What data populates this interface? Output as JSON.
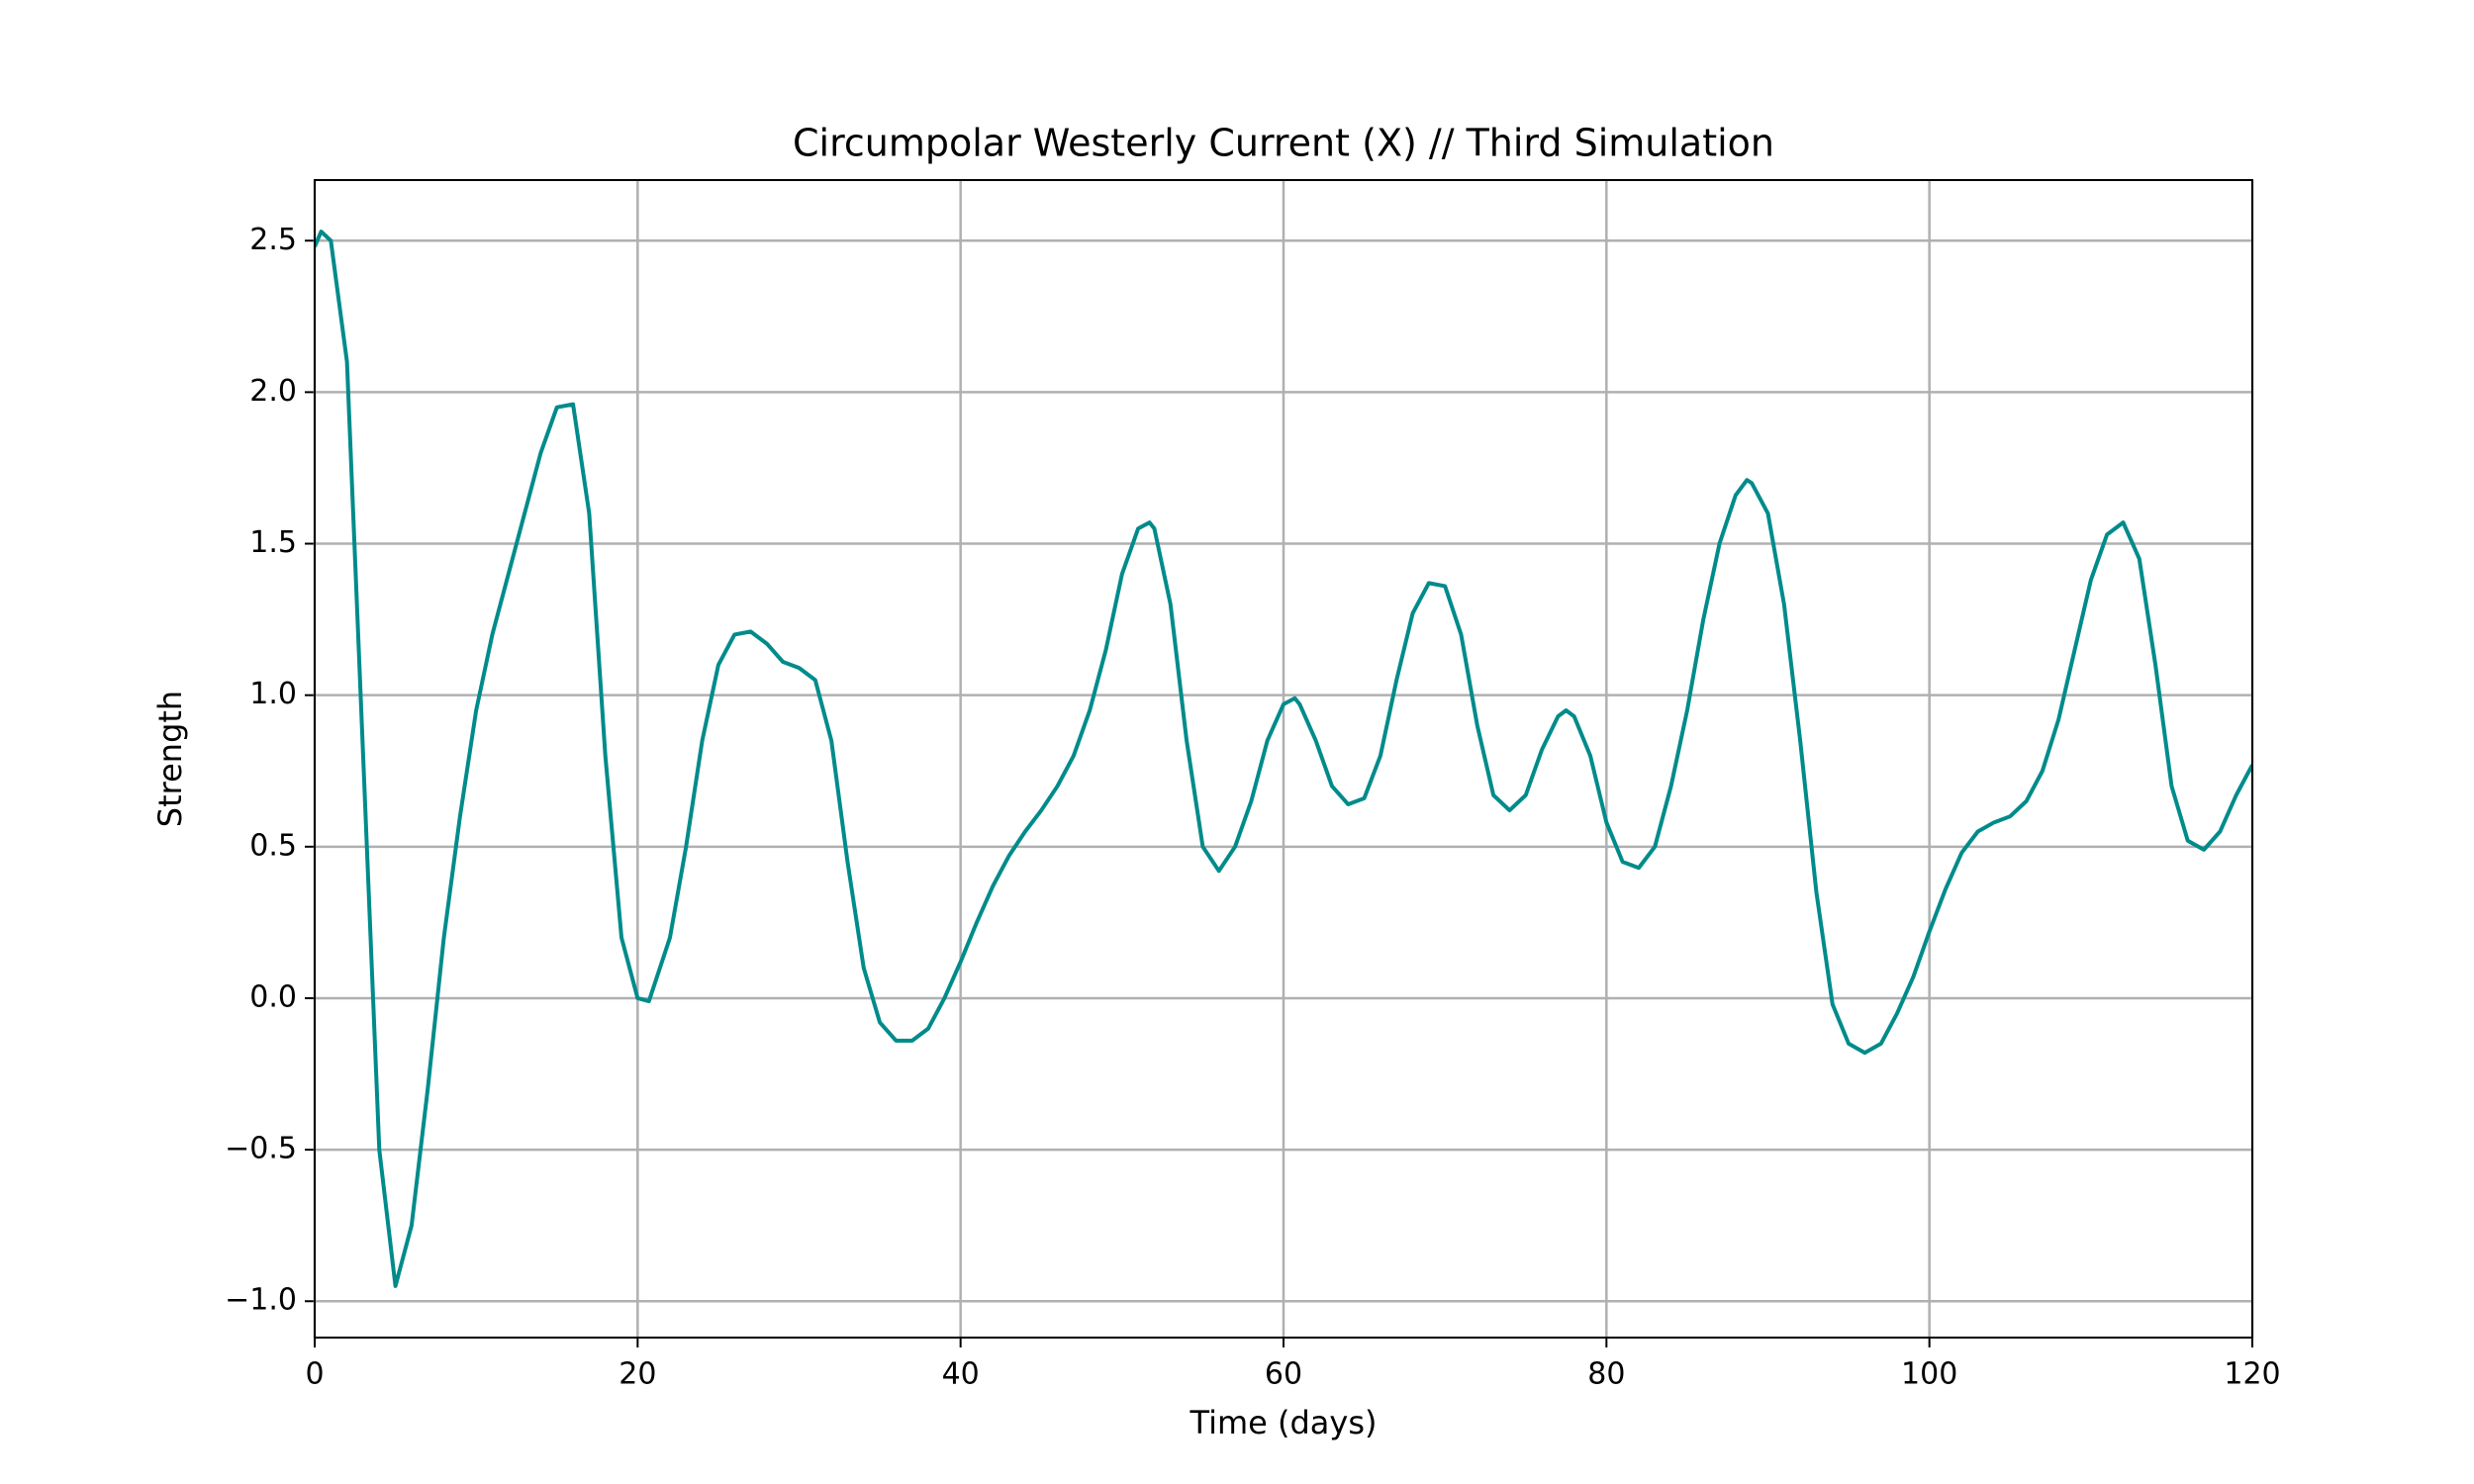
{
  "chart_data": {
    "type": "line",
    "title": "Circumpolar Westerly Current (X) // Third Simulation",
    "xlabel": "Time (days)",
    "ylabel": "Strength",
    "x": [
      0,
      0.4,
      1,
      2,
      3,
      4,
      5,
      6,
      7,
      8,
      9,
      10,
      11,
      12,
      13,
      14,
      15,
      16,
      17,
      18,
      19,
      20,
      20.7,
      22,
      23,
      24,
      25,
      26,
      27,
      28,
      29,
      30,
      31,
      32,
      33,
      34,
      35,
      36,
      37,
      38,
      39,
      40,
      41,
      42,
      43,
      44,
      45,
      46,
      47,
      48,
      49,
      50,
      51,
      51.7,
      52,
      53,
      54,
      55,
      56,
      57,
      58,
      59,
      60,
      60.7,
      61,
      62,
      63,
      64,
      65,
      66,
      67,
      68,
      69,
      70,
      71,
      72,
      73,
      74,
      75,
      76,
      77,
      77.5,
      78,
      79,
      80,
      81,
      82,
      83,
      84,
      85,
      86,
      87,
      88,
      88.7,
      89,
      90,
      91,
      92,
      93,
      94,
      95,
      96,
      97,
      98,
      99,
      100,
      101,
      102,
      103,
      104,
      105,
      106,
      107,
      108,
      109,
      110,
      111,
      112,
      113,
      114,
      115,
      116,
      117,
      118,
      119,
      120
    ],
    "series": [
      {
        "name": "Strength",
        "color": "#008b8b",
        "values": [
          2.48,
          2.53,
          2.5,
          2.1,
          0.8,
          -0.5,
          -0.95,
          -0.75,
          -0.3,
          0.2,
          0.6,
          0.95,
          1.2,
          1.4,
          1.6,
          1.8,
          1.95,
          1.96,
          1.6,
          0.8,
          0.2,
          0.0,
          -0.01,
          0.2,
          0.5,
          0.85,
          1.1,
          1.2,
          1.21,
          1.17,
          1.11,
          1.09,
          1.05,
          0.85,
          0.45,
          0.1,
          -0.08,
          -0.14,
          -0.14,
          -0.1,
          0.0,
          0.12,
          0.25,
          0.37,
          0.47,
          0.55,
          0.62,
          0.7,
          0.8,
          0.95,
          1.15,
          1.4,
          1.55,
          1.57,
          1.55,
          1.3,
          0.85,
          0.5,
          0.42,
          0.5,
          0.65,
          0.85,
          0.97,
          0.99,
          0.97,
          0.85,
          0.7,
          0.64,
          0.66,
          0.8,
          1.05,
          1.27,
          1.37,
          1.36,
          1.2,
          0.9,
          0.67,
          0.62,
          0.67,
          0.82,
          0.93,
          0.95,
          0.93,
          0.8,
          0.58,
          0.45,
          0.43,
          0.5,
          0.7,
          0.95,
          1.25,
          1.5,
          1.66,
          1.71,
          1.7,
          1.6,
          1.3,
          0.85,
          0.35,
          -0.02,
          -0.15,
          -0.18,
          -0.15,
          -0.05,
          0.07,
          0.22,
          0.36,
          0.48,
          0.55,
          0.58,
          0.6,
          0.65,
          0.75,
          0.92,
          1.15,
          1.38,
          1.53,
          1.57,
          1.45,
          1.1,
          0.7,
          0.52,
          0.49,
          0.55,
          0.67,
          0.77
        ]
      }
    ],
    "xlim": [
      0,
      120
    ],
    "ylim": [
      -1.12,
      2.7
    ],
    "xticks": [
      0,
      20,
      40,
      60,
      80,
      100,
      120
    ],
    "yticks": [
      {
        "value": -1.0,
        "label": "−1.0"
      },
      {
        "value": -0.5,
        "label": "−0.5"
      },
      {
        "value": 0.0,
        "label": "0.0"
      },
      0.5,
      {
        "value": 1.0,
        "label": "1.0"
      },
      1.5,
      {
        "value": 2.0,
        "label": "2.0"
      },
      2.5
    ],
    "grid": true
  }
}
